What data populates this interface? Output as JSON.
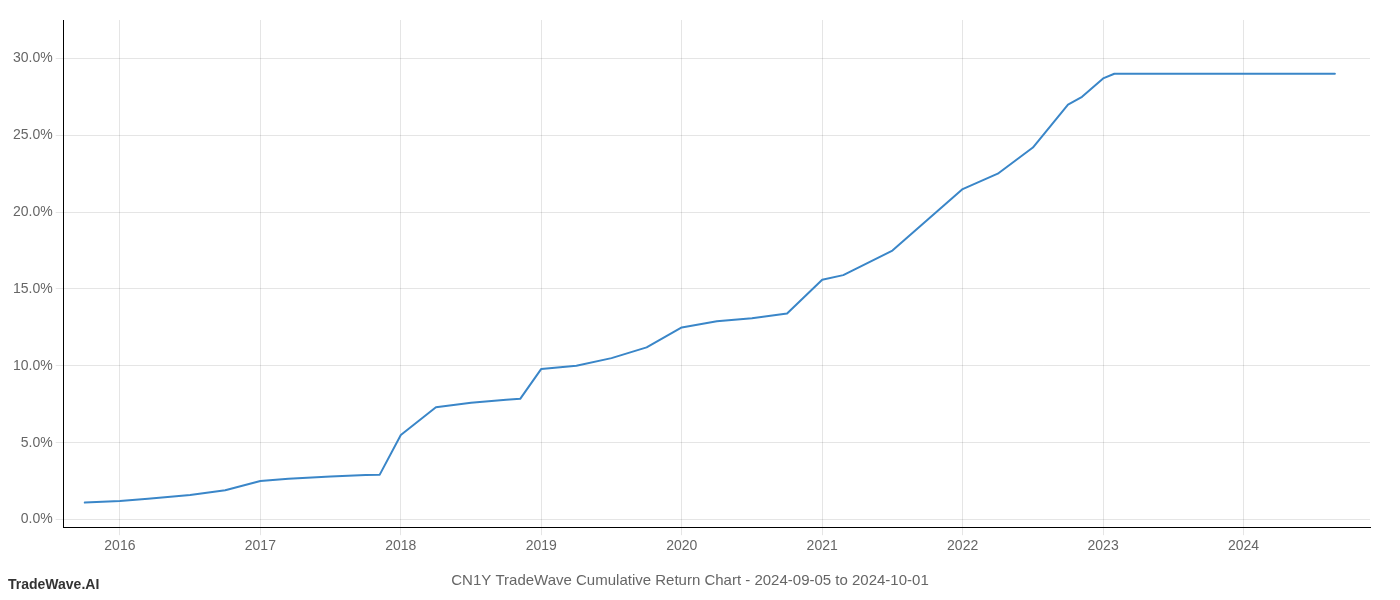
{
  "chart_data": {
    "type": "line",
    "title": "CN1Y TradeWave Cumulative Return Chart - 2024-09-05 to 2024-10-01",
    "annotations": [
      {
        "text": "TradeWave.AI"
      }
    ],
    "color": "#3a86c8",
    "x": [
      2015.75,
      2016.0,
      2016.2,
      2016.5,
      2016.75,
      2017.0,
      2017.2,
      2017.5,
      2017.75,
      2017.85,
      2018.0,
      2018.25,
      2018.5,
      2018.75,
      2018.85,
      2019.0,
      2019.25,
      2019.5,
      2019.75,
      2020.0,
      2020.25,
      2020.5,
      2020.75,
      2021.0,
      2021.15,
      2021.5,
      2021.75,
      2022.0,
      2022.25,
      2022.5,
      2022.75,
      2022.85,
      2023.0,
      2023.08,
      2023.25,
      2023.5,
      2023.75,
      2024.0,
      2024.3,
      2024.65
    ],
    "values": [
      1.1,
      1.2,
      1.35,
      1.6,
      1.9,
      2.5,
      2.65,
      2.8,
      2.9,
      2.92,
      5.5,
      7.3,
      7.6,
      7.8,
      7.85,
      9.8,
      10.0,
      10.5,
      11.2,
      12.5,
      12.9,
      13.1,
      13.4,
      15.6,
      15.9,
      17.5,
      19.5,
      21.5,
      22.5,
      24.2,
      27.0,
      27.5,
      28.7,
      29.0,
      29.0,
      29.0,
      29.0,
      29.0,
      29.0,
      29.0
    ],
    "xlim": [
      2015.6,
      2024.9
    ],
    "ylim": [
      -0.5,
      32.5
    ],
    "xticks": [
      2016,
      2017,
      2018,
      2019,
      2020,
      2021,
      2022,
      2023,
      2024
    ],
    "yticks": [
      {
        "value": 0.0,
        "label": "0.0%"
      },
      {
        "value": 5.0,
        "label": "5.0%"
      },
      {
        "value": 10.0,
        "label": "10.0%"
      },
      {
        "value": 15.0,
        "label": "15.0%"
      },
      {
        "value": 20.0,
        "label": "20.0%"
      },
      {
        "value": 25.0,
        "label": "25.0%"
      },
      {
        "value": 30.0,
        "label": "30.0%"
      }
    ],
    "grid": true
  }
}
